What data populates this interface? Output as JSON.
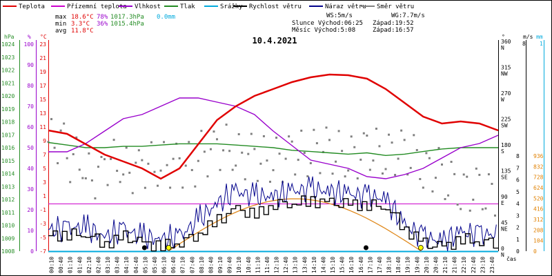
{
  "chart_data": {
    "type": "line",
    "title": "10.4.2021",
    "legend": [
      {
        "key": "temp",
        "label": "Teplota",
        "color": "#e00000"
      },
      {
        "key": "feels",
        "label": "Přízemní teplota",
        "color": "#cc00cc"
      },
      {
        "key": "hum",
        "label": "Vlhkost",
        "color": "#9900cc"
      },
      {
        "key": "press",
        "label": "Tlak",
        "color": "#228b22"
      },
      {
        "key": "rain",
        "label": "Srážky",
        "color": "#00aadd"
      },
      {
        "key": "wind",
        "label": "Rychlost větru",
        "color": "#000000"
      },
      {
        "key": "gust",
        "label": "Náraz větru",
        "color": "#00008b"
      },
      {
        "key": "dir",
        "label": "Směr větru",
        "color": "#808080"
      }
    ],
    "stats": {
      "max_label": "max",
      "max_temp": "18.6°C",
      "max_hum": "78%",
      "max_press": "1017.3hPa",
      "max_rain": "0.0mm",
      "min_label": "min",
      "min_temp": "3.3°C",
      "min_hum": "36%",
      "min_press": "1015.4hPa",
      "avg_label": "avg",
      "avg_temp": "11.8°C",
      "ws": "WS:5m/s",
      "wg": "WG:7.7m/s",
      "sun_rise": "Slunce Východ:06:25",
      "sun_set": "Západ:19:52",
      "moon_rise": "Měsíc  Východ:5:08",
      "moon_set": "Západ:16:57"
    },
    "axes": {
      "hpa_title": "hPa",
      "pct_title": "%",
      "c_title": "°C",
      "deg_title": "°",
      "ms_title": "m/s",
      "mm_title": "mm",
      "hpa_ticks": [
        "1024",
        "1023",
        "1022",
        "1021",
        "1020",
        "1019",
        "1018",
        "1017",
        "1016",
        "1015",
        "1014",
        "1013",
        "1012",
        "1011",
        "1010",
        "1009",
        "1008"
      ],
      "pct_ticks": [
        "100",
        "90",
        "80",
        "70",
        "60",
        "50",
        "40",
        "30",
        "20",
        "10",
        "0"
      ],
      "c_ticks": [
        "23",
        "21",
        "19",
        "17",
        "15",
        "13",
        "11",
        "9",
        "7",
        "5",
        "3",
        "1",
        "-1",
        "-3",
        "-5",
        "-7"
      ],
      "deg_ticks": [
        {
          "v": "360",
          "d": "N"
        },
        {
          "v": "315",
          "d": "NW"
        },
        {
          "v": "270",
          "d": "W"
        },
        {
          "v": "225",
          "d": "SW"
        },
        {
          "v": "180",
          "d": "S"
        },
        {
          "v": "135",
          "d": "SE"
        },
        {
          "v": "90",
          "d": "E"
        },
        {
          "v": "45",
          "d": "NE"
        },
        {
          "v": "0",
          "d": "N"
        }
      ],
      "ms_ticks": [
        "8",
        "7",
        "6",
        "5",
        "4",
        "3",
        "2",
        "1",
        "0"
      ],
      "mm_ticks": [
        "936",
        "832",
        "728",
        "624",
        "520",
        "416",
        "312",
        "208",
        "104",
        "0"
      ],
      "ms_top": "8",
      "mm_top": "1",
      "x_label": "čas",
      "time_labels": [
        "00:10",
        "00:40",
        "01:10",
        "01:40",
        "02:10",
        "02:40",
        "03:10",
        "03:40",
        "04:10",
        "04:40",
        "05:10",
        "05:40",
        "06:10",
        "06:40",
        "07:10",
        "07:40",
        "08:10",
        "08:40",
        "09:10",
        "09:40",
        "10:10",
        "10:40",
        "11:10",
        "11:40",
        "12:10",
        "12:40",
        "13:10",
        "13:40",
        "14:10",
        "14:40",
        "15:10",
        "15:40",
        "16:10",
        "16:40",
        "17:10",
        "17:40",
        "18:10",
        "18:40",
        "19:10",
        "19:40",
        "20:10",
        "20:40",
        "21:10",
        "21:40",
        "22:10",
        "22:40",
        "23:10",
        "23:40"
      ]
    },
    "x_hours": [
      0,
      1,
      2,
      3,
      4,
      5,
      6,
      7,
      8,
      9,
      10,
      11,
      12,
      13,
      14,
      15,
      16,
      17,
      18,
      19,
      20,
      21,
      22,
      23,
      24
    ],
    "temperature_c": [
      10.5,
      10.0,
      8.5,
      7.0,
      6.0,
      5.0,
      3.5,
      5.0,
      8.5,
      12.0,
      14.0,
      15.5,
      16.5,
      17.5,
      18.2,
      18.6,
      18.5,
      18.0,
      16.5,
      14.5,
      12.5,
      11.5,
      11.8,
      11.5,
      10.5
    ],
    "humidity_pct": [
      48,
      48,
      52,
      58,
      64,
      66,
      70,
      74,
      74,
      72,
      70,
      66,
      58,
      51,
      44,
      42,
      40,
      36,
      35,
      37,
      40,
      45,
      50,
      52,
      56
    ],
    "pressure_hpa": [
      1016.4,
      1016.2,
      1016.0,
      1016.0,
      1016.1,
      1016.1,
      1016.2,
      1016.3,
      1016.3,
      1016.3,
      1016.2,
      1016.1,
      1016.0,
      1015.8,
      1015.7,
      1015.6,
      1015.5,
      1015.6,
      1015.4,
      1015.5,
      1015.7,
      1015.9,
      1016.0,
      1016.0,
      1016.0
    ],
    "wind_ms": [
      1.3,
      1.4,
      1.5,
      0.6,
      1.2,
      0.6,
      0.4,
      0.8,
      1.5,
      2.6,
      3.5,
      3.0,
      4.0,
      4.1,
      4.2,
      4.0,
      3.9,
      3.9,
      3.8,
      1.8,
      0.6,
      0.3,
      1.0,
      0.9,
      0.7
    ],
    "gust_ms": [
      1.8,
      1.9,
      2.0,
      1.2,
      1.8,
      1.2,
      1.0,
      1.2,
      2.6,
      4.0,
      5.0,
      4.6,
      4.6,
      5.0,
      5.2,
      5.0,
      4.8,
      4.6,
      4.4,
      2.2,
      1.2,
      0.8,
      1.6,
      1.4,
      1.4
    ],
    "direction_deg": [
      190,
      160,
      130,
      155,
      140,
      150,
      150,
      150,
      170,
      180,
      165,
      160,
      160,
      170,
      175,
      170,
      165,
      175,
      170,
      165,
      140,
      120,
      105,
      100,
      105
    ],
    "solar_curve_hours": [
      6.4,
      19.9
    ],
    "solar_peak_ms": 4.4,
    "ylim_temp_c": [
      -7,
      23
    ],
    "ylim_hpa": [
      1008,
      1024
    ],
    "ylim_pct": [
      0,
      100
    ],
    "ylim_deg": [
      0,
      360
    ],
    "ylim_ms": [
      0,
      8
    ],
    "grid": false
  }
}
